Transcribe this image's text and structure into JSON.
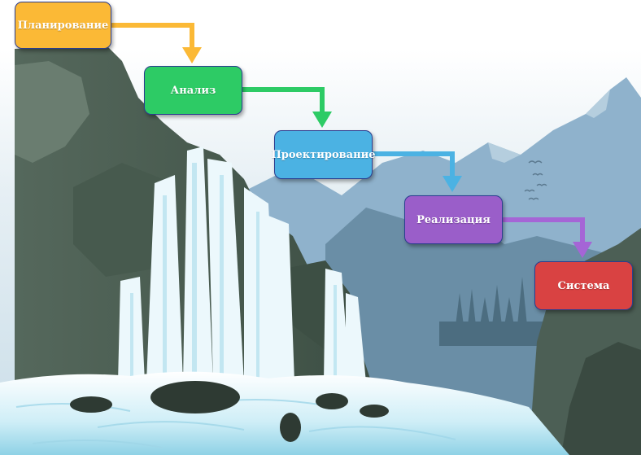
{
  "diagram": {
    "steps": [
      {
        "label": "Планирование",
        "color": "#fbb936"
      },
      {
        "label": "Анализ",
        "color": "#2dcb65"
      },
      {
        "label": "Проектирование",
        "color": "#4bb2e3"
      },
      {
        "label": "Реализация",
        "color": "#9a5ec9"
      },
      {
        "label": "Система",
        "color": "#d94242"
      }
    ],
    "connector_colors": [
      "#fbb936",
      "#2dcb65",
      "#4bb2e3",
      "#a565d6"
    ]
  },
  "background": {
    "scene": "waterfall-landscape",
    "colors": {
      "sky": "#d8e7ef",
      "far_mountain": "#7fa7c7",
      "mid_mountain": "#5c8098",
      "cliff_dark": "#3f5548",
      "cliff_mid": "#5d7064",
      "water": "#bfe6f2",
      "foam": "#f4fbff",
      "rock": "#2f3a33"
    }
  }
}
